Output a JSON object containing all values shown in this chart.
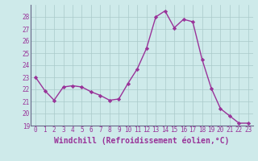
{
  "x": [
    0,
    1,
    2,
    3,
    4,
    5,
    6,
    7,
    8,
    9,
    10,
    11,
    12,
    13,
    14,
    15,
    16,
    17,
    18,
    19,
    20,
    21,
    22,
    23
  ],
  "y": [
    23.0,
    21.9,
    21.1,
    22.2,
    22.3,
    22.2,
    21.8,
    21.5,
    21.1,
    21.2,
    22.5,
    23.7,
    25.4,
    28.0,
    28.5,
    27.1,
    27.8,
    27.6,
    24.5,
    22.1,
    20.4,
    19.8,
    19.2,
    19.2
  ],
  "line_color": "#993399",
  "marker": "D",
  "marker_size": 2.2,
  "bg_color": "#ceeaea",
  "grid_color": "#aacaca",
  "axis_line_color": "#666688",
  "tick_color": "#993399",
  "xlabel": "Windchill (Refroidissement éolien,°C)",
  "ylim": [
    19,
    29
  ],
  "xlim": [
    -0.5,
    23.5
  ],
  "yticks": [
    19,
    20,
    21,
    22,
    23,
    24,
    25,
    26,
    27,
    28
  ],
  "xticks": [
    0,
    1,
    2,
    3,
    4,
    5,
    6,
    7,
    8,
    9,
    10,
    11,
    12,
    13,
    14,
    15,
    16,
    17,
    18,
    19,
    20,
    21,
    22,
    23
  ],
  "tick_fontsize": 5.5,
  "xlabel_fontsize": 7.0,
  "line_width": 1.0
}
